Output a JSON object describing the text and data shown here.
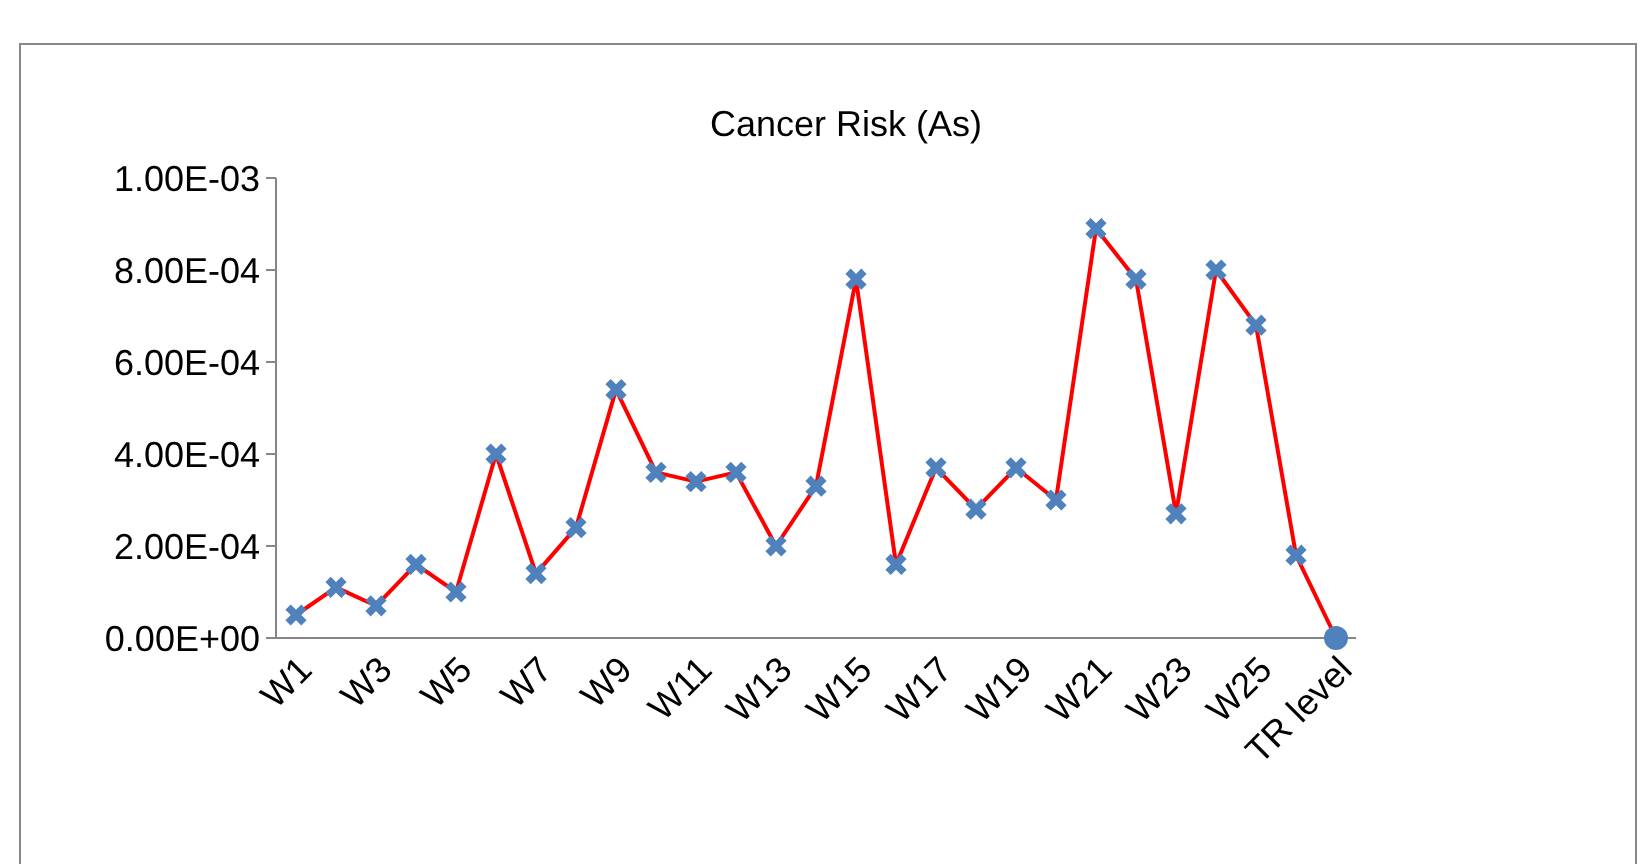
{
  "chart_data": {
    "type": "line",
    "title": "Cancer Risk (As)",
    "categories": [
      "W1",
      null,
      "W3",
      null,
      "W5",
      null,
      "W7",
      null,
      "W9",
      null,
      "W11",
      null,
      "W13",
      null,
      "W15",
      null,
      "W17",
      null,
      "W19",
      null,
      "W21",
      null,
      "W23",
      null,
      "W25",
      null,
      "TR level"
    ],
    "series": [
      {
        "color": "#ff0000",
        "marker": "none",
        "values": [
          5e-05,
          0.00011,
          7e-05,
          0.00016,
          0.0001,
          0.0004,
          0.00014,
          0.00024,
          0.00054,
          0.00036,
          0.00034,
          0.00036,
          0.0002,
          0.00033,
          0.00078,
          0.00016,
          0.00037,
          0.00028,
          0.00037,
          0.0003,
          0.00089,
          0.00078,
          0.00027,
          0.0008,
          0.00068,
          0.00018,
          0
        ]
      },
      {
        "type": "scatter",
        "color": "#4f81bd",
        "marker": "cross",
        "values": [
          5e-05,
          0.00011,
          7e-05,
          0.00016,
          0.0001,
          0.0004,
          0.00014,
          0.00024,
          0.00054,
          0.00036,
          0.00034,
          0.00036,
          0.0002,
          0.00033,
          0.00078,
          0.00016,
          0.00037,
          0.00028,
          0.00037,
          0.0003,
          0.00089,
          0.00078,
          0.00027,
          0.0008,
          0.00068,
          0.00018,
          null
        ]
      },
      {
        "type": "scatter",
        "color": "#4f81bd",
        "marker": "circle",
        "x": [
          "TR level"
        ],
        "values": [
          0
        ]
      }
    ],
    "ylim": [
      0,
      0.001
    ],
    "yticks": [
      {
        "value": 0,
        "label": "0.00E+00"
      },
      {
        "value": 0.0002,
        "label": "2.00E-04"
      },
      {
        "value": 0.0004,
        "label": "4.00E-04"
      },
      {
        "value": 0.0006,
        "label": "6.00E-04"
      },
      {
        "value": 0.0008,
        "label": "8.00E-04"
      },
      {
        "value": 0.001,
        "label": "1.00E-03"
      }
    ],
    "grid": false
  }
}
